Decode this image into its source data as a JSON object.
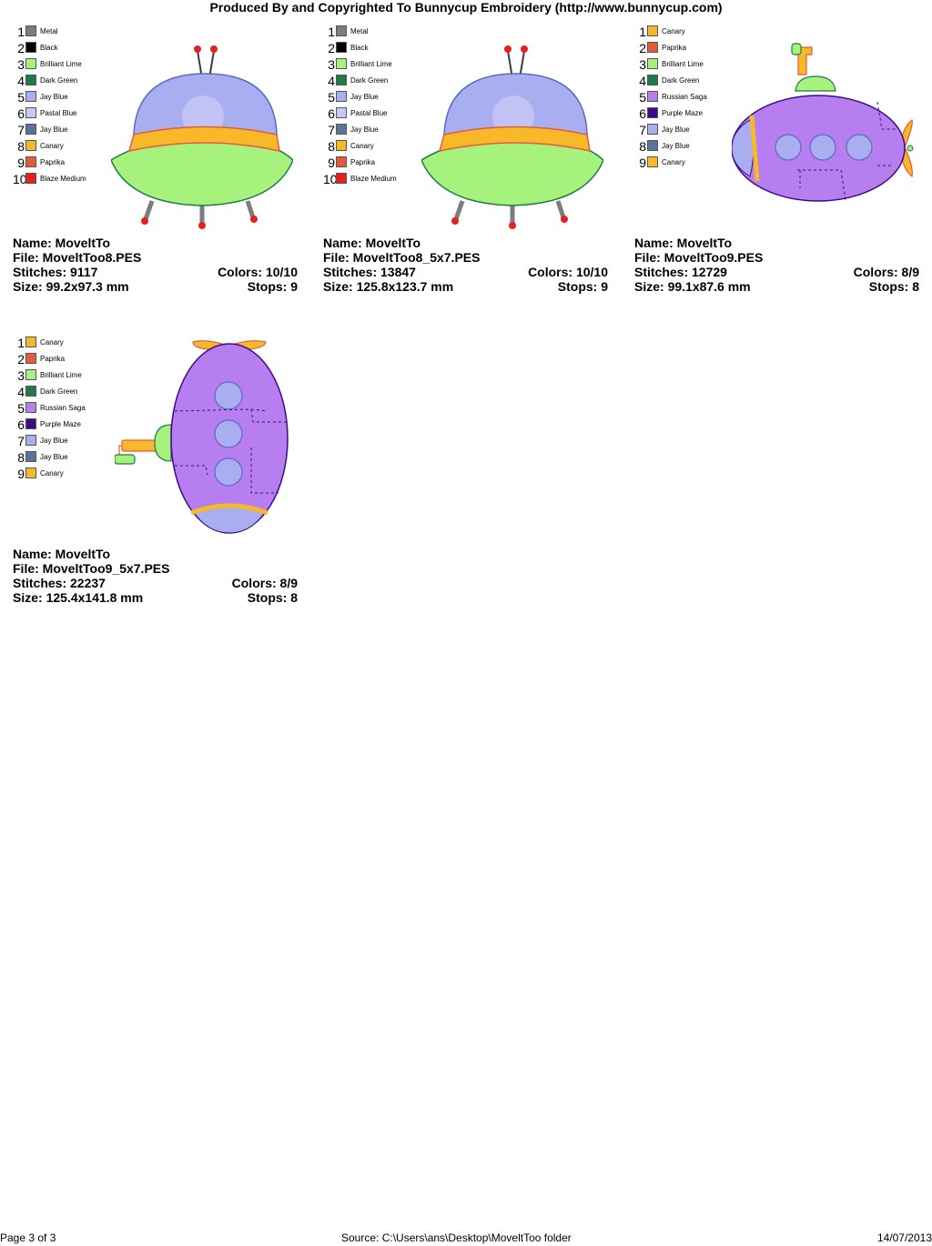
{
  "header": {
    "title": "Produced By and Copyrighted To Bunnycup Embroidery (http://www.bunnycup.com)"
  },
  "designs": [
    {
      "colors": [
        {
          "num": "1",
          "name": "Metal",
          "hex": "#7a7d80"
        },
        {
          "num": "2",
          "name": "Black",
          "hex": "#000000"
        },
        {
          "num": "3",
          "name": "Brilliant Lime",
          "hex": "#a6f27c"
        },
        {
          "num": "4",
          "name": "Dark Green",
          "hex": "#1f7a4a"
        },
        {
          "num": "5",
          "name": "Jay Blue",
          "hex": "#a8aef0"
        },
        {
          "num": "6",
          "name": "Pastal Blue",
          "hex": "#c9c7f5"
        },
        {
          "num": "7",
          "name": "Jay Blue",
          "hex": "#5a7498"
        },
        {
          "num": "8",
          "name": "Canary",
          "hex": "#f7b82a"
        },
        {
          "num": "9",
          "name": "Paprika",
          "hex": "#e55a3a"
        },
        {
          "num": "10",
          "name": "Blaze Medium",
          "hex": "#e81f1f"
        }
      ],
      "name": "Name: MoveltTo",
      "file": "File: MoveltToo8.PES",
      "stitches": "Stitches: 9117",
      "colors_count": "Colors: 10/10",
      "size": "Size: 99.2x97.3 mm",
      "stops": "Stops: 9"
    },
    {
      "colors": [
        {
          "num": "1",
          "name": "Metal",
          "hex": "#7a7d80"
        },
        {
          "num": "2",
          "name": "Black",
          "hex": "#000000"
        },
        {
          "num": "3",
          "name": "Brilliant Lime",
          "hex": "#a6f27c"
        },
        {
          "num": "4",
          "name": "Dark Green",
          "hex": "#1f7a4a"
        },
        {
          "num": "5",
          "name": "Jay Blue",
          "hex": "#a8aef0"
        },
        {
          "num": "6",
          "name": "Pastal Blue",
          "hex": "#c9c7f5"
        },
        {
          "num": "7",
          "name": "Jay Blue",
          "hex": "#5a7498"
        },
        {
          "num": "8",
          "name": "Canary",
          "hex": "#f7b82a"
        },
        {
          "num": "9",
          "name": "Paprika",
          "hex": "#e55a3a"
        },
        {
          "num": "10",
          "name": "Blaze Medium",
          "hex": "#e81f1f"
        }
      ],
      "name": "Name: MoveltTo",
      "file": "File: MoveltToo8_5x7.PES",
      "stitches": "Stitches: 13847",
      "colors_count": "Colors: 10/10",
      "size": "Size: 125.8x123.7 mm",
      "stops": "Stops: 9"
    },
    {
      "colors": [
        {
          "num": "1",
          "name": "Canary",
          "hex": "#f7b82a"
        },
        {
          "num": "2",
          "name": "Paprika",
          "hex": "#e55a3a"
        },
        {
          "num": "3",
          "name": "Brilliant Lime",
          "hex": "#a6f27c"
        },
        {
          "num": "4",
          "name": "Dark Green",
          "hex": "#1f7a4a"
        },
        {
          "num": "5",
          "name": "Russian Saga",
          "hex": "#b77ef0"
        },
        {
          "num": "6",
          "name": "Purple Maze",
          "hex": "#3c0a8a"
        },
        {
          "num": "7",
          "name": "Jay Blue",
          "hex": "#a8aef0"
        },
        {
          "num": "8",
          "name": "Jay Blue",
          "hex": "#5a7498"
        },
        {
          "num": "9",
          "name": "Canary",
          "hex": "#f7b82a"
        }
      ],
      "name": "Name: MoveltTo",
      "file": "File: MoveltToo9.PES",
      "stitches": "Stitches: 12729",
      "colors_count": "Colors: 8/9",
      "size": "Size: 99.1x87.6 mm",
      "stops": "Stops: 8"
    },
    {
      "colors": [
        {
          "num": "1",
          "name": "Canary",
          "hex": "#f7b82a"
        },
        {
          "num": "2",
          "name": "Paprika",
          "hex": "#e55a3a"
        },
        {
          "num": "3",
          "name": "Brilliant Lime",
          "hex": "#a6f27c"
        },
        {
          "num": "4",
          "name": "Dark Green",
          "hex": "#1f7a4a"
        },
        {
          "num": "5",
          "name": "Russian Saga",
          "hex": "#b77ef0"
        },
        {
          "num": "6",
          "name": "Purple Maze",
          "hex": "#3c0a8a"
        },
        {
          "num": "7",
          "name": "Jay Blue",
          "hex": "#a8aef0"
        },
        {
          "num": "8",
          "name": "Jay Blue",
          "hex": "#5a7498"
        },
        {
          "num": "9",
          "name": "Canary",
          "hex": "#f7b82a"
        }
      ],
      "name": "Name: MoveltTo",
      "file": "File: MoveltToo9_5x7.PES",
      "stitches": "Stitches: 22237",
      "colors_count": "Colors: 8/9",
      "size": "Size: 125.4x141.8 mm",
      "stops": "Stops: 8"
    }
  ],
  "footer": {
    "page": "Page 3 of 3",
    "source": "Source: C:\\Users\\ans\\Desktop\\MoveltToo folder",
    "date": "14/07/2013"
  }
}
